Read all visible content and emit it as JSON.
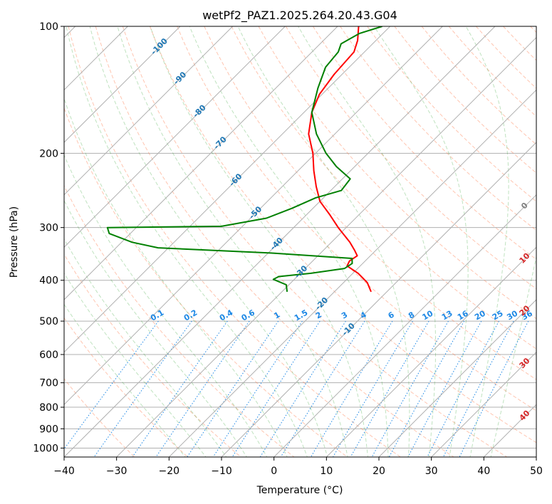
{
  "chart_data": {
    "type": "line",
    "chart_kind": "skew-t log-p diagram",
    "title": "wetPf2_PAZ1.2025.264.20.43.G04",
    "xlabel": "Temperature (°C)",
    "ylabel": "Pressure (hPa)",
    "xlim": [
      -40,
      50
    ],
    "ylim": [
      1050,
      100
    ],
    "x_ticks": [
      -40,
      -30,
      -20,
      -10,
      0,
      10,
      20,
      30,
      40,
      50
    ],
    "x_tick_labels": [
      "−40",
      "−30",
      "−20",
      "−10",
      "0",
      "10",
      "20",
      "30",
      "40",
      "50"
    ],
    "y_ticks": [
      100,
      200,
      300,
      400,
      500,
      600,
      700,
      800,
      900,
      1000
    ],
    "y_tick_labels": [
      "100",
      "200",
      "300",
      "400",
      "500",
      "600",
      "700",
      "800",
      "900",
      "1000"
    ],
    "grid": true,
    "series": [
      {
        "name": "temperature",
        "color": "#ff0000",
        "points": [
          {
            "p": 426,
            "t": -13.0
          },
          {
            "p": 405,
            "t": -15.5
          },
          {
            "p": 385,
            "t": -19.0
          },
          {
            "p": 370,
            "t": -22.5
          },
          {
            "p": 360,
            "t": -23.0
          },
          {
            "p": 350,
            "t": -22.5
          },
          {
            "p": 340,
            "t": -24.0
          },
          {
            "p": 325,
            "t": -26.5
          },
          {
            "p": 300,
            "t": -31.5
          },
          {
            "p": 280,
            "t": -35.5
          },
          {
            "p": 260,
            "t": -40.0
          },
          {
            "p": 240,
            "t": -43.5
          },
          {
            "p": 220,
            "t": -47.0
          },
          {
            "p": 200,
            "t": -50.5
          },
          {
            "p": 180,
            "t": -55.0
          },
          {
            "p": 160,
            "t": -58.5
          },
          {
            "p": 145,
            "t": -60.5
          },
          {
            "p": 130,
            "t": -61.5
          },
          {
            "p": 115,
            "t": -62.0
          },
          {
            "p": 108,
            "t": -63.5
          },
          {
            "p": 100,
            "t": -66.0
          }
        ]
      },
      {
        "name": "dewpoint",
        "color": "#008000",
        "points": [
          {
            "p": 426,
            "t": -29.0
          },
          {
            "p": 410,
            "t": -30.5
          },
          {
            "p": 398,
            "t": -34.0
          },
          {
            "p": 392,
            "t": -33.5
          },
          {
            "p": 385,
            "t": -28.0
          },
          {
            "p": 375,
            "t": -22.5
          },
          {
            "p": 365,
            "t": -22.0
          },
          {
            "p": 355,
            "t": -23.0
          },
          {
            "p": 345,
            "t": -39.0
          },
          {
            "p": 335,
            "t": -62.0
          },
          {
            "p": 325,
            "t": -68.0
          },
          {
            "p": 310,
            "t": -74.0
          },
          {
            "p": 300,
            "t": -75.5
          },
          {
            "p": 298,
            "t": -54.0
          },
          {
            "p": 285,
            "t": -47.0
          },
          {
            "p": 270,
            "t": -44.0
          },
          {
            "p": 255,
            "t": -41.5
          },
          {
            "p": 245,
            "t": -38.0
          },
          {
            "p": 230,
            "t": -38.5
          },
          {
            "p": 215,
            "t": -43.5
          },
          {
            "p": 200,
            "t": -48.0
          },
          {
            "p": 180,
            "t": -53.5
          },
          {
            "p": 160,
            "t": -58.5
          },
          {
            "p": 140,
            "t": -62.0
          },
          {
            "p": 125,
            "t": -64.5
          },
          {
            "p": 115,
            "t": -65.0
          },
          {
            "p": 110,
            "t": -66.0
          },
          {
            "p": 104,
            "t": -64.5
          },
          {
            "p": 100,
            "t": -61.5
          }
        ]
      }
    ],
    "isotherm_labels": [
      "-100",
      "-90",
      "-80",
      "-70",
      "-60",
      "-50",
      "-40",
      "-30",
      "-20",
      "-10",
      "0",
      "10",
      "20",
      "30",
      "40"
    ],
    "mixing_ratio_labels": [
      "0.1",
      "0.2",
      "0.4",
      "0.6",
      "1",
      "1.5",
      "2",
      "3",
      "4",
      "6",
      "8",
      "10",
      "13",
      "16",
      "20",
      "25",
      "30",
      "36"
    ]
  },
  "colors": {
    "temperature": "#ff0000",
    "dewpoint": "#008000",
    "isotherm_label_cold": "#1f77b4",
    "isotherm_label_warm": "#d62728",
    "isotherm_label_zero": "#808080",
    "mixing_ratio": "#1e88e5",
    "dry_adiabat": "#ff7f50",
    "moist_adiabat": "#2ca02c",
    "grid": "#b0b0b0"
  }
}
